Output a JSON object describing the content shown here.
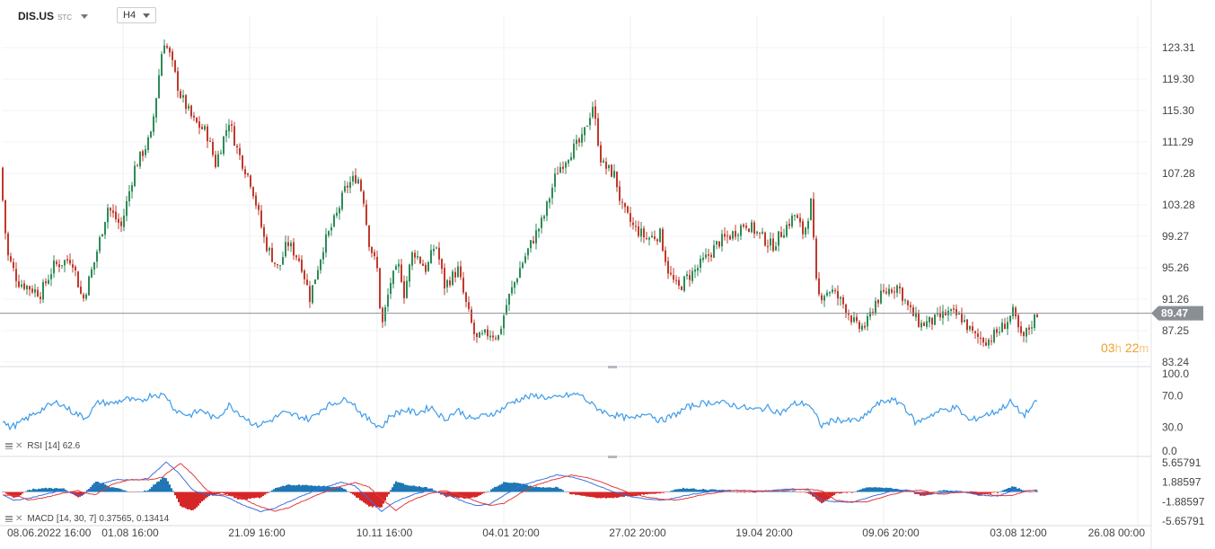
{
  "header": {
    "symbol": "DIS.US",
    "symbol_suffix": "STC",
    "timeframe": "H4"
  },
  "current_price": "89.47",
  "countdown": {
    "hours": "03",
    "h_unit": "h",
    "minutes": "22",
    "m_unit": "m"
  },
  "colors": {
    "up": "#2e8b57",
    "down": "#c0392b",
    "rsi_line": "#3d9be9",
    "macd_line": "#3d6fe0",
    "signal_line": "#e03c3c",
    "hist_pos": "#1f77b4",
    "hist_neg": "#d62728",
    "price_badge": "#8a8f96",
    "countdown": "#f0a028"
  },
  "chart_data": [
    {
      "type": "candlestick",
      "price_axis_ticks": [
        "123.31",
        "119.30",
        "115.30",
        "111.29",
        "107.28",
        "103.28",
        "99.27",
        "95.26",
        "91.26",
        "87.25",
        "83.24"
      ],
      "ylim": [
        83.24,
        125.5
      ],
      "last_price": 89.47,
      "time_axis_ticks": [
        "08.06.2022  16:00",
        "01.08  16:00",
        "21.09  16:00",
        "10.11  16:00",
        "04.01  20:00",
        "27.02  20:00",
        "19.04  20:00",
        "09.06  20:00",
        "03.08  12:00",
        "26.08  00:00"
      ],
      "x_keypoints": [
        "08.06.2022 16:00",
        "01.08 16:00",
        "21.09 16:00",
        "10.11 16:00",
        "04.01 20:00",
        "27.02 20:00",
        "19.04 20:00",
        "09.06 20:00",
        "03.08 12:00"
      ],
      "close_path": [
        [
          0,
          108
        ],
        [
          8,
          97
        ],
        [
          20,
          93.5
        ],
        [
          45,
          92
        ],
        [
          60,
          95.5
        ],
        [
          80,
          96.5
        ],
        [
          92,
          91
        ],
        [
          105,
          96
        ],
        [
          120,
          103
        ],
        [
          135,
          100.5
        ],
        [
          150,
          108
        ],
        [
          168,
          112
        ],
        [
          175,
          118
        ],
        [
          182,
          124.5
        ],
        [
          190,
          122
        ],
        [
          200,
          117.5
        ],
        [
          215,
          114
        ],
        [
          230,
          112.5
        ],
        [
          240,
          108.5
        ],
        [
          255,
          114
        ],
        [
          265,
          110
        ],
        [
          280,
          106
        ],
        [
          295,
          98.5
        ],
        [
          310,
          95
        ],
        [
          320,
          98.5
        ],
        [
          335,
          96
        ],
        [
          345,
          91.5
        ],
        [
          360,
          98
        ],
        [
          375,
          102
        ],
        [
          385,
          105.5
        ],
        [
          398,
          107
        ],
        [
          405,
          104
        ],
        [
          410,
          99
        ],
        [
          420,
          95
        ],
        [
          425,
          87.5
        ],
        [
          435,
          93.5
        ],
        [
          445,
          95.5
        ],
        [
          450,
          92
        ],
        [
          460,
          97.5
        ],
        [
          475,
          95
        ],
        [
          485,
          98.5
        ],
        [
          495,
          93
        ],
        [
          510,
          95
        ],
        [
          518,
          91
        ],
        [
          530,
          86
        ],
        [
          545,
          87
        ],
        [
          555,
          86.5
        ],
        [
          565,
          91
        ],
        [
          580,
          95.5
        ],
        [
          592,
          98.5
        ],
        [
          605,
          101.5
        ],
        [
          620,
          107.5
        ],
        [
          635,
          110
        ],
        [
          648,
          111.5
        ],
        [
          660,
          116
        ],
        [
          670,
          108.5
        ],
        [
          685,
          107
        ],
        [
          692,
          103
        ],
        [
          705,
          100.5
        ],
        [
          720,
          99
        ],
        [
          735,
          99.5
        ],
        [
          745,
          94.5
        ],
        [
          755,
          92.5
        ],
        [
          765,
          94
        ],
        [
          775,
          95
        ],
        [
          790,
          97
        ],
        [
          800,
          98.5
        ],
        [
          815,
          99.5
        ],
        [
          830,
          101
        ],
        [
          845,
          99.5
        ],
        [
          860,
          98
        ],
        [
          872,
          100
        ],
        [
          885,
          102
        ],
        [
          895,
          99.5
        ],
        [
          903,
          103.5
        ],
        [
          910,
          91.5
        ],
        [
          925,
          92.5
        ],
        [
          940,
          90.5
        ],
        [
          955,
          87.5
        ],
        [
          965,
          88
        ],
        [
          975,
          91
        ],
        [
          990,
          92.5
        ],
        [
          1000,
          93
        ],
        [
          1012,
          90
        ],
        [
          1025,
          88
        ],
        [
          1040,
          88.5
        ],
        [
          1055,
          89.5
        ],
        [
          1070,
          89
        ],
        [
          1085,
          86.5
        ],
        [
          1100,
          86
        ],
        [
          1115,
          87.5
        ],
        [
          1128,
          89.5
        ],
        [
          1138,
          86
        ],
        [
          1148,
          88
        ],
        [
          1155,
          89.5
        ]
      ]
    },
    {
      "type": "line",
      "name": "RSI [14]",
      "label": "RSI",
      "params": "[14]",
      "value": "62.6",
      "axis_ticks": [
        "100.0",
        "70.0",
        "30.0",
        "0.0"
      ],
      "ylim": [
        0,
        100
      ],
      "path": [
        [
          0,
          42
        ],
        [
          10,
          30
        ],
        [
          20,
          34
        ],
        [
          35,
          45
        ],
        [
          50,
          55
        ],
        [
          65,
          62
        ],
        [
          80,
          50
        ],
        [
          95,
          42
        ],
        [
          110,
          62
        ],
        [
          125,
          60
        ],
        [
          140,
          66
        ],
        [
          155,
          62
        ],
        [
          170,
          72
        ],
        [
          185,
          70
        ],
        [
          195,
          52
        ],
        [
          210,
          45
        ],
        [
          225,
          52
        ],
        [
          240,
          40
        ],
        [
          255,
          58
        ],
        [
          270,
          45
        ],
        [
          285,
          32
        ],
        [
          300,
          38
        ],
        [
          315,
          48
        ],
        [
          330,
          45
        ],
        [
          345,
          40
        ],
        [
          360,
          55
        ],
        [
          375,
          62
        ],
        [
          390,
          66
        ],
        [
          400,
          50
        ],
        [
          410,
          40
        ],
        [
          425,
          30
        ],
        [
          435,
          45
        ],
        [
          450,
          52
        ],
        [
          465,
          48
        ],
        [
          480,
          56
        ],
        [
          495,
          40
        ],
        [
          510,
          52
        ],
        [
          525,
          40
        ],
        [
          540,
          45
        ],
        [
          555,
          50
        ],
        [
          570,
          62
        ],
        [
          585,
          68
        ],
        [
          600,
          70
        ],
        [
          615,
          66
        ],
        [
          630,
          70
        ],
        [
          645,
          72
        ],
        [
          660,
          58
        ],
        [
          675,
          48
        ],
        [
          690,
          44
        ],
        [
          705,
          40
        ],
        [
          720,
          50
        ],
        [
          735,
          38
        ],
        [
          750,
          45
        ],
        [
          765,
          55
        ],
        [
          780,
          60
        ],
        [
          795,
          62
        ],
        [
          810,
          60
        ],
        [
          825,
          56
        ],
        [
          840,
          52
        ],
        [
          855,
          55
        ],
        [
          870,
          48
        ],
        [
          885,
          60
        ],
        [
          900,
          60
        ],
        [
          915,
          32
        ],
        [
          930,
          40
        ],
        [
          945,
          38
        ],
        [
          960,
          40
        ],
        [
          975,
          58
        ],
        [
          990,
          65
        ],
        [
          1005,
          60
        ],
        [
          1020,
          35
        ],
        [
          1035,
          45
        ],
        [
          1050,
          52
        ],
        [
          1065,
          55
        ],
        [
          1080,
          38
        ],
        [
          1095,
          45
        ],
        [
          1110,
          50
        ],
        [
          1125,
          62
        ],
        [
          1140,
          45
        ],
        [
          1155,
          62.6
        ]
      ]
    },
    {
      "type": "line",
      "name": "MACD [14, 30, 7]",
      "label": "MACD",
      "params": "[14,  30,  7]",
      "values_text": "0.37565,  0.13414",
      "axis_ticks": [
        "5.65791",
        "1.88597",
        "-1.88597",
        "-5.65791"
      ],
      "ylim": [
        -7.5,
        7.5
      ],
      "macd_path": [
        [
          0,
          -0.3
        ],
        [
          15,
          -1.6
        ],
        [
          30,
          -1.3
        ],
        [
          50,
          -0.5
        ],
        [
          70,
          0.4
        ],
        [
          90,
          -0.8
        ],
        [
          110,
          1.5
        ],
        [
          130,
          2.4
        ],
        [
          150,
          2.3
        ],
        [
          165,
          2.6
        ],
        [
          185,
          5.8
        ],
        [
          200,
          3.5
        ],
        [
          215,
          0.3
        ],
        [
          230,
          -0.5
        ],
        [
          250,
          -0.8
        ],
        [
          270,
          -2.5
        ],
        [
          290,
          -3.8
        ],
        [
          305,
          -3.2
        ],
        [
          320,
          -2.0
        ],
        [
          340,
          -0.5
        ],
        [
          360,
          0.8
        ],
        [
          380,
          1.9
        ],
        [
          395,
          1.2
        ],
        [
          410,
          -1.2
        ],
        [
          425,
          -3.8
        ],
        [
          440,
          -1.9
        ],
        [
          460,
          -0.5
        ],
        [
          480,
          0.4
        ],
        [
          500,
          -0.7
        ],
        [
          515,
          -1.8
        ],
        [
          530,
          -2.6
        ],
        [
          545,
          -2.4
        ],
        [
          560,
          -0.8
        ],
        [
          580,
          1.2
        ],
        [
          600,
          2.3
        ],
        [
          620,
          3.3
        ],
        [
          640,
          2.8
        ],
        [
          660,
          1.6
        ],
        [
          680,
          0.2
        ],
        [
          700,
          -0.8
        ],
        [
          720,
          -1.4
        ],
        [
          740,
          -1.6
        ],
        [
          760,
          -0.8
        ],
        [
          780,
          -0.2
        ],
        [
          800,
          0.3
        ],
        [
          820,
          0.3
        ],
        [
          840,
          0.1
        ],
        [
          860,
          0.3
        ],
        [
          880,
          0.6
        ],
        [
          900,
          0.4
        ],
        [
          915,
          -1.6
        ],
        [
          930,
          -1.9
        ],
        [
          950,
          -2.0
        ],
        [
          970,
          -0.9
        ],
        [
          990,
          0.0
        ],
        [
          1010,
          0.4
        ],
        [
          1030,
          -0.5
        ],
        [
          1050,
          -0.2
        ],
        [
          1070,
          0.1
        ],
        [
          1090,
          -0.6
        ],
        [
          1110,
          -0.8
        ],
        [
          1130,
          0.3
        ],
        [
          1145,
          0.2
        ],
        [
          1155,
          0.4
        ]
      ],
      "signal_lag": 8
    }
  ]
}
